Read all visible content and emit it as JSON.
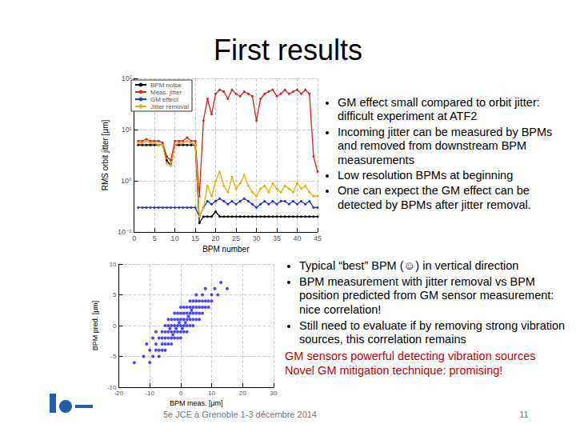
{
  "slide": {
    "title": "First results",
    "bullets_top": [
      "GM effect small compared to orbit jitter: difficult experiment at ATF2",
      "Incoming jitter can be measured by BPMs and removed from downstream BPM measurements",
      "Low resolution BPMs at beginning",
      "One can expect the GM effect can be detected by BPMs after jitter removal."
    ],
    "bullets_bottom": [
      "Typical “best” BPM (☺) in vertical direction",
      "BPM measurement with jitter removal vs BPM position predicted from GM sensor measurement: nice correlation!",
      "Still need to evaluate if by removing strong vibration sources, this correlation remains"
    ],
    "highlights": [
      "GM sensors powerful detecting vibration sources",
      "Novel GM mitigation technique: promising!"
    ],
    "footer": "5e JCE à Grenoble 1-3 décembre 2014",
    "page": "11"
  },
  "chart_data": [
    {
      "type": "line",
      "xlabel": "BPM number",
      "ylabel": "RMS orbit jitter [μm]",
      "x": [
        1,
        2,
        3,
        4,
        5,
        6,
        7,
        8,
        9,
        10,
        11,
        12,
        13,
        14,
        15,
        16,
        17,
        18,
        19,
        20,
        21,
        22,
        23,
        24,
        25,
        26,
        27,
        28,
        29,
        30,
        31,
        32,
        33,
        34,
        35,
        36,
        37,
        38,
        39,
        40,
        41,
        42,
        43,
        44,
        45
      ],
      "xlim": [
        0,
        45
      ],
      "xticks": [
        0,
        5,
        10,
        15,
        20,
        25,
        30,
        35,
        40,
        45
      ],
      "ylim": [
        0.1,
        100
      ],
      "yticks": [
        {
          "value": 0.1,
          "label": "10⁻¹"
        },
        {
          "value": 1,
          "label": "10⁰"
        },
        {
          "value": 10,
          "label": "10¹"
        },
        {
          "value": 100,
          "label": "10²"
        }
      ],
      "log": "y",
      "grid": true,
      "legend": "top-left",
      "marker": "circle",
      "line_style": "solid",
      "series": [
        {
          "name": "BPM noise",
          "color": "#000000",
          "values": [
            5,
            5,
            5,
            5,
            5,
            5,
            5,
            2.5,
            2,
            5,
            5,
            5,
            5,
            5,
            5,
            0.15,
            0.2,
            0.2,
            0.2,
            0.25,
            0.2,
            0.2,
            0.2,
            0.2,
            0.2,
            0.2,
            0.2,
            0.2,
            0.2,
            0.2,
            0.2,
            0.2,
            0.2,
            0.2,
            0.2,
            0.2,
            0.2,
            0.2,
            0.2,
            0.2,
            0.2,
            0.2,
            0.2,
            0.2,
            0.2
          ]
        },
        {
          "name": "Meas. jitter",
          "color": "#e0201a",
          "values": [
            6,
            6,
            6.5,
            6,
            6,
            6,
            5.5,
            3,
            2.5,
            6,
            6,
            6,
            7,
            6,
            6,
            0.5,
            15,
            40,
            20,
            50,
            60,
            55,
            40,
            60,
            50,
            45,
            55,
            50,
            45,
            15,
            40,
            50,
            55,
            60,
            45,
            50,
            60,
            50,
            55,
            60,
            50,
            60,
            50,
            3,
            1.5
          ]
        },
        {
          "name": "GM effect",
          "color": "#2030d0",
          "values": [
            0.3,
            0.3,
            0.3,
            0.3,
            0.3,
            0.3,
            0.3,
            0.3,
            0.3,
            0.3,
            0.3,
            0.3,
            0.3,
            0.3,
            0.3,
            0.2,
            0.3,
            0.4,
            0.35,
            0.4,
            0.45,
            0.4,
            0.35,
            0.4,
            0.35,
            0.4,
            0.45,
            0.4,
            0.35,
            0.3,
            0.35,
            0.4,
            0.35,
            0.4,
            0.35,
            0.4,
            0.4,
            0.35,
            0.4,
            0.35,
            0.4,
            0.35,
            0.4,
            0.3,
            0.3
          ]
        },
        {
          "name": "Jitter removal",
          "color": "#e8b000",
          "values": [
            5.5,
            5.5,
            6,
            5.5,
            5.5,
            5,
            5,
            2.2,
            2,
            5,
            5.5,
            5.5,
            6,
            5.5,
            5,
            0.2,
            0.3,
            0.8,
            0.5,
            1,
            1.5,
            0.8,
            0.6,
            1.2,
            0.7,
            0.9,
            1.3,
            0.8,
            0.6,
            0.5,
            0.7,
            0.8,
            0.6,
            0.9,
            0.7,
            0.6,
            0.8,
            0.7,
            0.6,
            0.9,
            0.7,
            0.8,
            0.6,
            0.5,
            0.5
          ]
        }
      ]
    },
    {
      "type": "scatter",
      "xlabel": "BPM meas. [μm]",
      "ylabel": "BPM pred. [μm]",
      "xlim": [
        -20,
        30
      ],
      "xticks": [
        -20,
        -10,
        0,
        10,
        20,
        30
      ],
      "ylim": [
        -10,
        10
      ],
      "yticks": [
        -10,
        -5,
        0,
        5,
        10
      ],
      "grid": true,
      "color": "#1a1aff",
      "marker": "circle",
      "x": [
        -15,
        -12,
        -11,
        -10,
        -10,
        -9,
        -9,
        -8,
        -8,
        -8,
        -7,
        -7,
        -7,
        -6,
        -6,
        -6,
        -6,
        -5,
        -5,
        -5,
        -5,
        -5,
        -4,
        -4,
        -4,
        -4,
        -4,
        -3,
        -3,
        -3,
        -3,
        -3,
        -2,
        -2,
        -2,
        -2,
        -2,
        -1,
        -1,
        -1,
        -1,
        -1,
        0,
        0,
        0,
        0,
        0,
        0,
        1,
        1,
        1,
        1,
        1,
        2,
        2,
        2,
        2,
        2,
        3,
        3,
        3,
        3,
        3,
        4,
        4,
        4,
        4,
        4,
        5,
        5,
        5,
        5,
        5,
        6,
        6,
        6,
        6,
        7,
        7,
        7,
        7,
        8,
        8,
        8,
        9,
        9,
        10,
        10,
        11,
        12,
        13,
        15,
        -0.5,
        0.5,
        1.5,
        -1.5,
        2.5,
        -2.5,
        3.5,
        -3.5
      ],
      "values": [
        -6,
        -5,
        -3,
        -4,
        -6,
        -2,
        -5,
        -3,
        -4,
        -1,
        -2,
        -4,
        -5,
        -1,
        -3,
        -2,
        -4,
        0,
        -2,
        -3,
        -1,
        -4,
        -1,
        -2,
        0,
        -3,
        1,
        -1,
        0,
        -2,
        1,
        -3,
        0,
        -1,
        1,
        -2,
        2,
        0,
        1,
        -1,
        2,
        -2,
        0,
        1,
        -1,
        2,
        -2,
        3,
        0,
        1,
        2,
        -1,
        3,
        1,
        0,
        2,
        3,
        -1,
        1,
        2,
        0,
        3,
        4,
        1,
        2,
        3,
        0,
        4,
        2,
        3,
        1,
        4,
        5,
        2,
        3,
        4,
        1,
        3,
        2,
        5,
        4,
        3,
        4,
        6,
        4,
        3,
        5,
        4,
        6,
        5,
        7,
        6,
        0.5,
        -0.5,
        0.5,
        -0.5,
        1.5,
        -1.5,
        2.5,
        -0.5
      ]
    }
  ]
}
